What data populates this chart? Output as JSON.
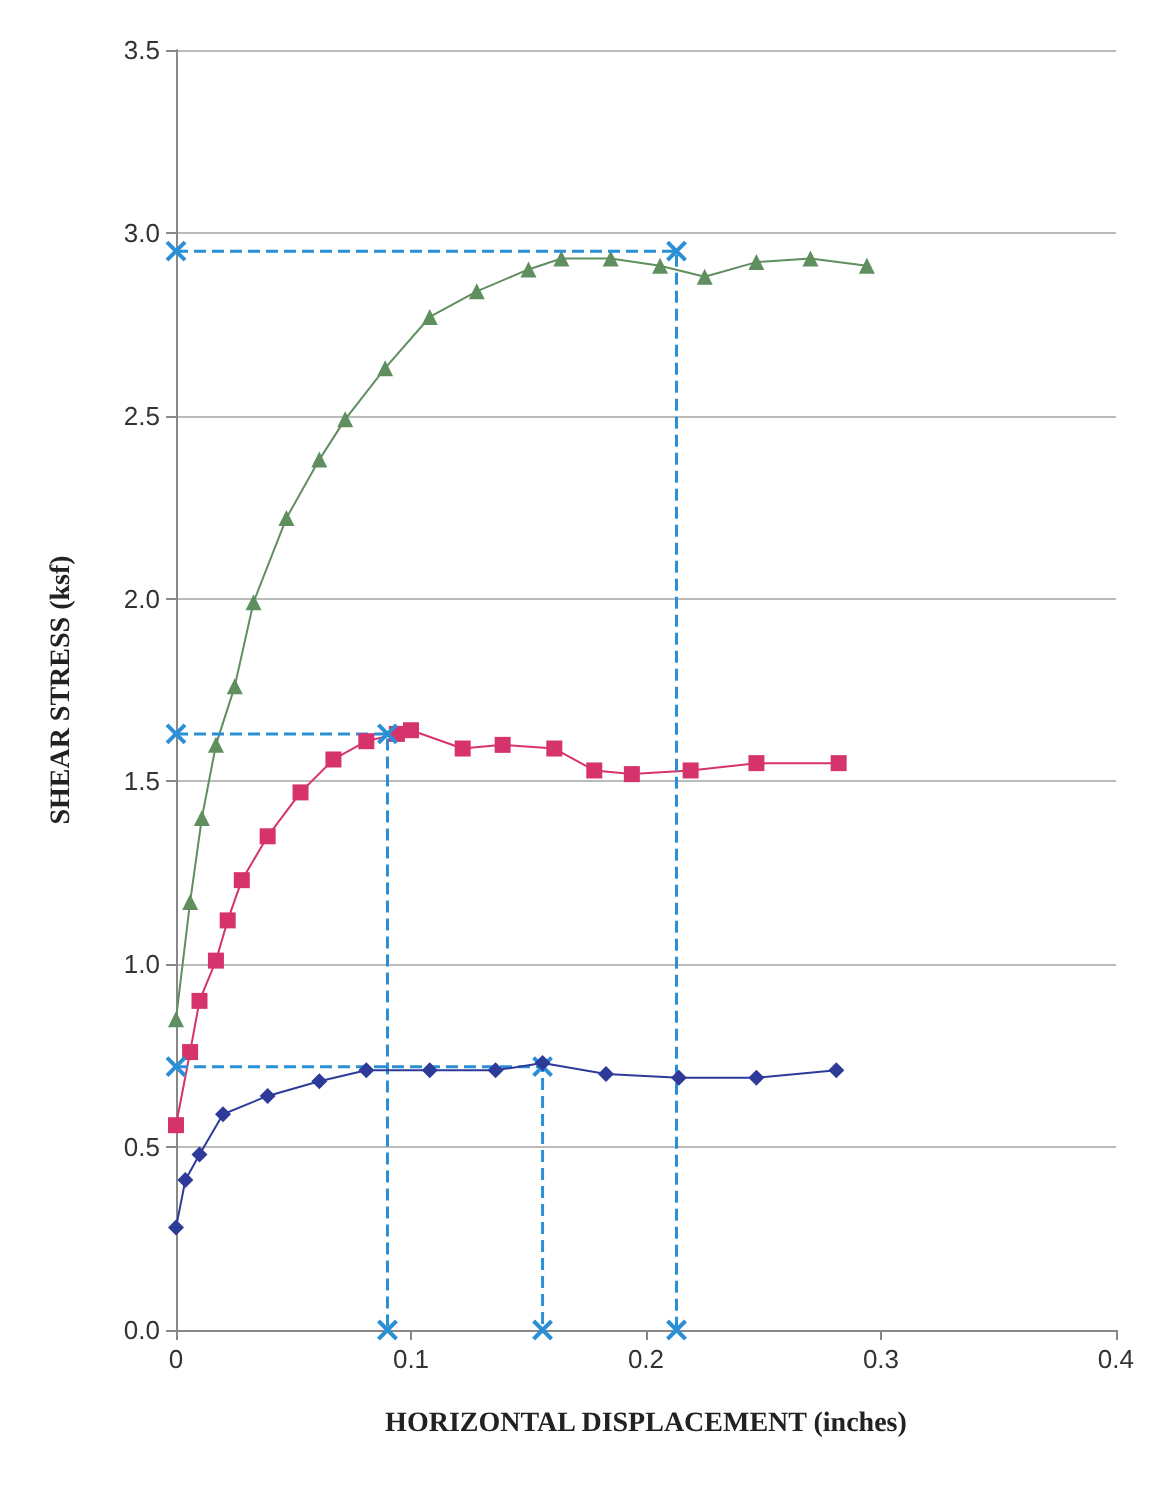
{
  "chart_data": {
    "type": "line",
    "xlabel": "HORIZONTAL DISPLACEMENT (inches)",
    "ylabel": "SHEAR STRESS (ksf)",
    "xlim": [
      0,
      0.4
    ],
    "xticks": [
      0,
      0.1,
      0.2,
      0.3,
      0.4
    ],
    "ylim": [
      0,
      3.5
    ],
    "yticks": [
      {
        "value": 0,
        "label": "0.0"
      },
      0.5,
      {
        "value": 1,
        "label": "1.0"
      },
      1.5,
      {
        "value": 2,
        "label": "2.0"
      },
      2.5,
      {
        "value": 3,
        "label": "3.0"
      },
      3.5
    ],
    "grid": "y",
    "series": [
      {
        "color": "#5f8f5f",
        "marker": "triangle",
        "x": [
          0,
          0.006,
          0.011,
          0.017,
          0.025,
          0.033,
          0.047,
          0.061,
          0.072,
          0.089,
          0.108,
          0.128,
          0.15,
          0.164,
          0.185,
          0.206,
          0.225,
          0.247,
          0.27,
          0.294
        ],
        "values": [
          0.85,
          1.17,
          1.4,
          1.6,
          1.76,
          1.99,
          2.22,
          2.38,
          2.49,
          2.63,
          2.77,
          2.84,
          2.9,
          2.93,
          2.93,
          2.91,
          2.88,
          2.92,
          2.93,
          2.91
        ]
      },
      {
        "color": "#d6336c",
        "marker": "square",
        "x": [
          0,
          0.006,
          0.01,
          0.017,
          0.022,
          0.028,
          0.039,
          0.053,
          0.067,
          0.081,
          0.094,
          0.1,
          0.122,
          0.139,
          0.161,
          0.178,
          0.194,
          0.219,
          0.247,
          0.282
        ],
        "values": [
          0.56,
          0.76,
          0.9,
          1.01,
          1.12,
          1.23,
          1.35,
          1.47,
          1.56,
          1.61,
          1.63,
          1.64,
          1.59,
          1.6,
          1.59,
          1.53,
          1.52,
          1.53,
          1.55,
          1.55
        ]
      },
      {
        "color": "#2e3a99",
        "marker": "diamond",
        "x": [
          0,
          0.004,
          0.01,
          0.02,
          0.039,
          0.061,
          0.081,
          0.108,
          0.136,
          0.156,
          0.183,
          0.214,
          0.247,
          0.281
        ],
        "values": [
          0.28,
          0.41,
          0.48,
          0.59,
          0.64,
          0.68,
          0.71,
          0.71,
          0.71,
          0.73,
          0.7,
          0.69,
          0.69,
          0.71
        ]
      },
      {
        "color": "#2b8fd6",
        "marker": "cross",
        "line_style": "dashed",
        "x": [
          0,
          0.213,
          0.213
        ],
        "values": [
          2.95,
          2.95,
          0
        ]
      },
      {
        "color": "#2b8fd6",
        "marker": "cross",
        "line_style": "dashed",
        "x": [
          0,
          0.09,
          0.09
        ],
        "values": [
          1.63,
          1.63,
          0
        ]
      },
      {
        "color": "#2b8fd6",
        "marker": "cross",
        "line_style": "dashed",
        "x": [
          0,
          0.156,
          0.156
        ],
        "values": [
          0.72,
          0.72,
          0
        ]
      }
    ]
  }
}
